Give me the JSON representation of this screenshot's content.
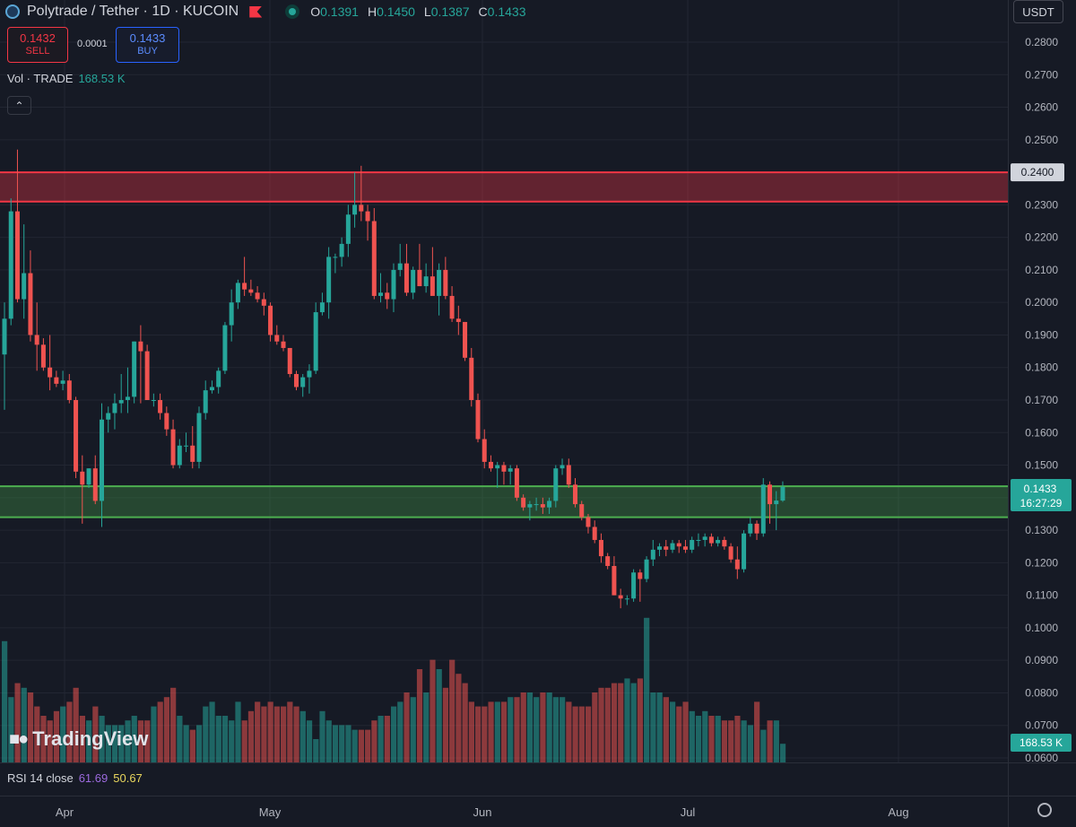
{
  "header": {
    "title": "Polytrade / Tether · 1D · KUCOIN",
    "ohlc": [
      {
        "k": "O",
        "v": "0.1391"
      },
      {
        "k": "H",
        "v": "0.1450"
      },
      {
        "k": "L",
        "v": "0.1387"
      },
      {
        "k": "C",
        "v": "0.1433"
      }
    ]
  },
  "trade": {
    "sell_price": "0.1432",
    "sell_label": "SELL",
    "spread": "0.0001",
    "buy_price": "0.1433",
    "buy_label": "BUY"
  },
  "volume_legend": {
    "label": "Vol · TRADE",
    "value": "168.53 K"
  },
  "currency_button": "USDT",
  "rsi_legend": {
    "label": "RSI 14 close",
    "value1": "61.69",
    "value2": "50.67"
  },
  "branding": "TradingView",
  "price_tags": {
    "resistance": "0.2400",
    "last_price": "0.1433",
    "countdown": "16:27:29",
    "volume": "168.53 K"
  },
  "colors": {
    "up": "#26a69a",
    "down": "#ef5350",
    "background": "#161a25",
    "grid": "#222632",
    "resistance_zone": "#f23645",
    "support_zone": "#4caf50"
  },
  "chart_data": {
    "type": "candlestick",
    "title": "Polytrade / Tether · 1D · KUCOIN",
    "y_ticks": [
      "0.2800",
      "0.2700",
      "0.2600",
      "0.2500",
      "0.2400",
      "0.2300",
      "0.2200",
      "0.2100",
      "0.2000",
      "0.1900",
      "0.1800",
      "0.1700",
      "0.1600",
      "0.1500",
      "0.1400",
      "0.1300",
      "0.1200",
      "0.1100",
      "0.1000",
      "0.0900",
      "0.0800",
      "0.0700",
      "0.0600"
    ],
    "ylim": [
      0.06,
      0.28
    ],
    "x_ticks": [
      "Apr",
      "May",
      "Jun",
      "Jul",
      "Aug"
    ],
    "grid": true,
    "zones": [
      {
        "name": "resistance",
        "low": 0.231,
        "high": 0.24
      },
      {
        "name": "support",
        "low": 0.134,
        "high": 0.1435
      }
    ],
    "candles": [
      [
        0.184,
        0.2,
        0.167,
        0.195,
        2.6
      ],
      [
        0.195,
        0.232,
        0.193,
        0.228,
        1.4
      ],
      [
        0.228,
        0.247,
        0.2,
        0.201,
        1.7
      ],
      [
        0.201,
        0.224,
        0.195,
        0.209,
        1.6
      ],
      [
        0.209,
        0.216,
        0.188,
        0.19,
        1.5
      ],
      [
        0.19,
        0.2,
        0.179,
        0.187,
        1.2
      ],
      [
        0.187,
        0.189,
        0.179,
        0.18,
        1.0
      ],
      [
        0.18,
        0.19,
        0.173,
        0.177,
        0.9
      ],
      [
        0.177,
        0.179,
        0.174,
        0.175,
        1.1
      ],
      [
        0.175,
        0.179,
        0.173,
        0.176,
        1.2
      ],
      [
        0.176,
        0.178,
        0.169,
        0.17,
        1.3
      ],
      [
        0.17,
        0.171,
        0.146,
        0.148,
        1.6
      ],
      [
        0.148,
        0.153,
        0.132,
        0.144,
        1.0
      ],
      [
        0.144,
        0.149,
        0.143,
        0.149,
        0.9
      ],
      [
        0.149,
        0.153,
        0.138,
        0.139,
        1.2
      ],
      [
        0.139,
        0.169,
        0.131,
        0.164,
        1.0
      ],
      [
        0.164,
        0.168,
        0.16,
        0.166,
        0.8
      ],
      [
        0.166,
        0.172,
        0.161,
        0.169,
        0.8
      ],
      [
        0.169,
        0.178,
        0.166,
        0.17,
        0.8
      ],
      [
        0.17,
        0.18,
        0.166,
        0.171,
        0.9
      ],
      [
        0.171,
        0.188,
        0.169,
        0.188,
        1.0
      ],
      [
        0.188,
        0.193,
        0.169,
        0.185,
        0.9
      ],
      [
        0.185,
        0.187,
        0.17,
        0.17,
        0.9
      ],
      [
        0.17,
        0.172,
        0.168,
        0.17,
        1.2
      ],
      [
        0.17,
        0.172,
        0.164,
        0.166,
        1.3
      ],
      [
        0.166,
        0.168,
        0.159,
        0.161,
        1.4
      ],
      [
        0.161,
        0.164,
        0.149,
        0.15,
        1.6
      ],
      [
        0.15,
        0.158,
        0.149,
        0.156,
        1.0
      ],
      [
        0.156,
        0.16,
        0.154,
        0.156,
        0.8
      ],
      [
        0.156,
        0.162,
        0.149,
        0.151,
        0.7
      ],
      [
        0.151,
        0.168,
        0.149,
        0.166,
        0.8
      ],
      [
        0.166,
        0.176,
        0.164,
        0.173,
        1.2
      ],
      [
        0.173,
        0.176,
        0.172,
        0.174,
        1.3
      ],
      [
        0.174,
        0.18,
        0.172,
        0.179,
        1.0
      ],
      [
        0.179,
        0.194,
        0.178,
        0.193,
        1.0
      ],
      [
        0.193,
        0.204,
        0.188,
        0.2,
        0.9
      ],
      [
        0.2,
        0.207,
        0.198,
        0.206,
        1.3
      ],
      [
        0.206,
        0.214,
        0.202,
        0.204,
        0.9
      ],
      [
        0.204,
        0.207,
        0.202,
        0.203,
        1.1
      ],
      [
        0.203,
        0.205,
        0.2,
        0.201,
        1.3
      ],
      [
        0.201,
        0.203,
        0.196,
        0.199,
        1.2
      ],
      [
        0.199,
        0.2,
        0.188,
        0.19,
        1.3
      ],
      [
        0.19,
        0.193,
        0.187,
        0.188,
        1.2
      ],
      [
        0.188,
        0.19,
        0.185,
        0.186,
        1.2
      ],
      [
        0.186,
        0.186,
        0.177,
        0.178,
        1.3
      ],
      [
        0.178,
        0.179,
        0.173,
        0.174,
        1.2
      ],
      [
        0.174,
        0.178,
        0.171,
        0.177,
        1.1
      ],
      [
        0.177,
        0.181,
        0.172,
        0.179,
        0.9
      ],
      [
        0.179,
        0.2,
        0.178,
        0.197,
        0.5
      ],
      [
        0.197,
        0.203,
        0.196,
        0.2,
        1.1
      ],
      [
        0.2,
        0.217,
        0.195,
        0.214,
        0.9
      ],
      [
        0.214,
        0.215,
        0.209,
        0.214,
        0.8
      ],
      [
        0.214,
        0.22,
        0.211,
        0.218,
        0.8
      ],
      [
        0.218,
        0.23,
        0.214,
        0.227,
        0.8
      ],
      [
        0.227,
        0.24,
        0.223,
        0.23,
        0.7
      ],
      [
        0.23,
        0.242,
        0.225,
        0.228,
        0.7
      ],
      [
        0.228,
        0.23,
        0.219,
        0.225,
        0.7
      ],
      [
        0.225,
        0.229,
        0.201,
        0.202,
        0.9
      ],
      [
        0.202,
        0.209,
        0.2,
        0.203,
        1.0
      ],
      [
        0.203,
        0.206,
        0.198,
        0.201,
        1.0
      ],
      [
        0.201,
        0.212,
        0.197,
        0.21,
        1.2
      ],
      [
        0.21,
        0.218,
        0.208,
        0.212,
        1.3
      ],
      [
        0.212,
        0.218,
        0.202,
        0.203,
        1.5
      ],
      [
        0.203,
        0.211,
        0.201,
        0.21,
        1.4
      ],
      [
        0.21,
        0.218,
        0.205,
        0.205,
        2.0
      ],
      [
        0.205,
        0.212,
        0.203,
        0.208,
        1.5
      ],
      [
        0.208,
        0.217,
        0.203,
        0.202,
        2.2
      ],
      [
        0.202,
        0.212,
        0.196,
        0.21,
        2.0
      ],
      [
        0.21,
        0.214,
        0.201,
        0.202,
        1.6
      ],
      [
        0.202,
        0.205,
        0.194,
        0.195,
        2.2
      ],
      [
        0.195,
        0.199,
        0.19,
        0.194,
        1.9
      ],
      [
        0.194,
        0.194,
        0.182,
        0.183,
        1.7
      ],
      [
        0.183,
        0.186,
        0.168,
        0.17,
        1.3
      ],
      [
        0.17,
        0.172,
        0.157,
        0.158,
        1.2
      ],
      [
        0.158,
        0.161,
        0.149,
        0.151,
        1.2
      ],
      [
        0.151,
        0.153,
        0.148,
        0.149,
        1.3
      ],
      [
        0.149,
        0.151,
        0.143,
        0.15,
        1.3
      ],
      [
        0.15,
        0.151,
        0.144,
        0.148,
        1.3
      ],
      [
        0.148,
        0.15,
        0.144,
        0.149,
        1.4
      ],
      [
        0.149,
        0.15,
        0.139,
        0.14,
        1.4
      ],
      [
        0.14,
        0.141,
        0.136,
        0.137,
        1.5
      ],
      [
        0.137,
        0.139,
        0.133,
        0.138,
        1.5
      ],
      [
        0.138,
        0.14,
        0.136,
        0.138,
        1.4
      ],
      [
        0.138,
        0.14,
        0.135,
        0.137,
        1.5
      ],
      [
        0.137,
        0.14,
        0.135,
        0.139,
        1.5
      ],
      [
        0.139,
        0.15,
        0.137,
        0.149,
        1.4
      ],
      [
        0.149,
        0.152,
        0.147,
        0.15,
        1.4
      ],
      [
        0.15,
        0.152,
        0.143,
        0.144,
        1.3
      ],
      [
        0.144,
        0.146,
        0.137,
        0.138,
        1.2
      ],
      [
        0.138,
        0.139,
        0.133,
        0.134,
        1.2
      ],
      [
        0.134,
        0.135,
        0.129,
        0.131,
        1.2
      ],
      [
        0.131,
        0.133,
        0.126,
        0.127,
        1.5
      ],
      [
        0.127,
        0.129,
        0.12,
        0.122,
        1.6
      ],
      [
        0.122,
        0.123,
        0.118,
        0.119,
        1.6
      ],
      [
        0.119,
        0.122,
        0.11,
        0.11,
        1.7
      ],
      [
        0.11,
        0.112,
        0.106,
        0.109,
        1.7
      ],
      [
        0.109,
        0.11,
        0.107,
        0.109,
        1.8
      ],
      [
        0.109,
        0.118,
        0.108,
        0.117,
        1.7
      ],
      [
        0.117,
        0.118,
        0.108,
        0.115,
        1.8
      ],
      [
        0.115,
        0.122,
        0.114,
        0.121,
        3.1
      ],
      [
        0.121,
        0.127,
        0.119,
        0.124,
        1.5
      ],
      [
        0.124,
        0.126,
        0.122,
        0.125,
        1.5
      ],
      [
        0.125,
        0.127,
        0.122,
        0.124,
        1.4
      ],
      [
        0.124,
        0.127,
        0.123,
        0.126,
        1.3
      ],
      [
        0.126,
        0.127,
        0.123,
        0.125,
        1.2
      ],
      [
        0.125,
        0.127,
        0.123,
        0.124,
        1.3
      ],
      [
        0.124,
        0.128,
        0.123,
        0.127,
        1.1
      ],
      [
        0.127,
        0.129,
        0.125,
        0.127,
        1.0
      ],
      [
        0.127,
        0.129,
        0.125,
        0.128,
        1.1
      ],
      [
        0.128,
        0.129,
        0.125,
        0.126,
        1.0
      ],
      [
        0.126,
        0.128,
        0.125,
        0.127,
        1.0
      ],
      [
        0.127,
        0.128,
        0.124,
        0.125,
        0.9
      ],
      [
        0.125,
        0.126,
        0.12,
        0.121,
        0.9
      ],
      [
        0.121,
        0.125,
        0.115,
        0.118,
        1.0
      ],
      [
        0.118,
        0.13,
        0.117,
        0.129,
        0.9
      ],
      [
        0.129,
        0.134,
        0.128,
        0.132,
        0.8
      ],
      [
        0.132,
        0.133,
        0.127,
        0.129,
        1.3
      ],
      [
        0.129,
        0.146,
        0.128,
        0.144,
        0.7
      ],
      [
        0.144,
        0.145,
        0.132,
        0.138,
        0.9
      ],
      [
        0.138,
        0.142,
        0.13,
        0.1391,
        0.9
      ],
      [
        0.1391,
        0.145,
        0.1387,
        0.1433,
        0.4
      ]
    ]
  }
}
